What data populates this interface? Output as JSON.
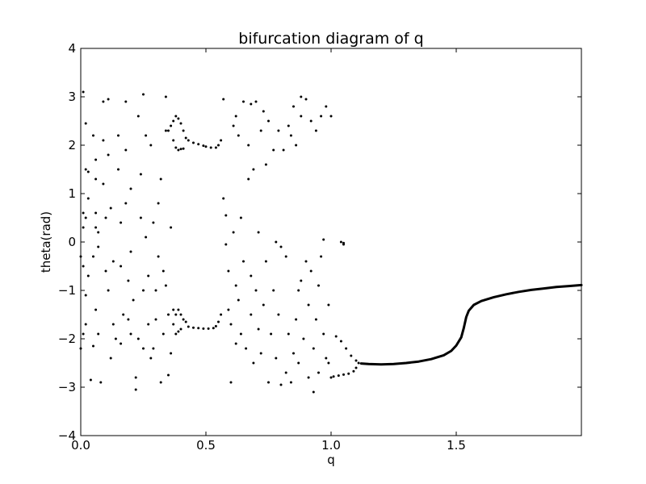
{
  "chart_data": {
    "type": "scatter",
    "title": "bifurcation diagram of q",
    "xlabel": "q",
    "ylabel": "theta(rad)",
    "xlim": [
      0.0,
      2.0
    ],
    "ylim": [
      -4,
      4
    ],
    "xticks": [
      0.0,
      0.5,
      1.0,
      1.5
    ],
    "xtick_labels": [
      "0.0",
      "0.5",
      "1.0",
      "1.5"
    ],
    "yticks": [
      -4,
      -3,
      -2,
      -1,
      0,
      1,
      2,
      3,
      4
    ],
    "ytick_labels": [
      "−4",
      "−3",
      "−2",
      "−1",
      "0",
      "1",
      "2",
      "3",
      "4"
    ],
    "grid": false,
    "marker_color": "#000000",
    "scatter_points": [
      [
        0.01,
        3.1
      ],
      [
        0.02,
        2.45
      ],
      [
        0.02,
        1.5
      ],
      [
        0.03,
        1.45
      ],
      [
        0.03,
        0.9
      ],
      [
        0.01,
        0.6
      ],
      [
        0.02,
        0.5
      ],
      [
        0.01,
        0.3
      ],
      [
        0.0,
        -0.3
      ],
      [
        0.01,
        -0.5
      ],
      [
        0.03,
        -0.7
      ],
      [
        0.02,
        -1.1
      ],
      [
        0.02,
        -1.7
      ],
      [
        0.01,
        -1.9
      ],
      [
        0.0,
        -2.2
      ],
      [
        0.04,
        -2.85
      ],
      [
        0.05,
        -2.15
      ],
      [
        0.05,
        2.2
      ],
      [
        0.06,
        1.7
      ],
      [
        0.06,
        1.3
      ],
      [
        0.06,
        0.6
      ],
      [
        0.06,
        0.3
      ],
      [
        0.07,
        0.2
      ],
      [
        0.07,
        -0.1
      ],
      [
        0.05,
        -0.3
      ],
      [
        0.06,
        -1.4
      ],
      [
        0.07,
        -1.9
      ],
      [
        0.08,
        -2.9
      ],
      [
        0.09,
        2.1
      ],
      [
        0.09,
        1.2
      ],
      [
        0.1,
        0.5
      ],
      [
        0.1,
        -0.6
      ],
      [
        0.11,
        -1.0
      ],
      [
        0.12,
        -2.4
      ],
      [
        0.09,
        2.9
      ],
      [
        0.11,
        2.95
      ],
      [
        0.11,
        1.8
      ],
      [
        0.12,
        0.7
      ],
      [
        0.13,
        -0.4
      ],
      [
        0.13,
        -1.7
      ],
      [
        0.14,
        -2.0
      ],
      [
        0.15,
        2.2
      ],
      [
        0.15,
        1.5
      ],
      [
        0.16,
        0.4
      ],
      [
        0.16,
        -0.5
      ],
      [
        0.17,
        -1.5
      ],
      [
        0.16,
        -2.1
      ],
      [
        0.18,
        2.9
      ],
      [
        0.18,
        1.9
      ],
      [
        0.18,
        0.8
      ],
      [
        0.19,
        -0.8
      ],
      [
        0.19,
        -1.6
      ],
      [
        0.2,
        1.1
      ],
      [
        0.2,
        -0.2
      ],
      [
        0.21,
        -1.2
      ],
      [
        0.2,
        -1.9
      ],
      [
        0.22,
        -2.8
      ],
      [
        0.22,
        -3.05
      ],
      [
        0.23,
        -2.0
      ],
      [
        0.23,
        2.6
      ],
      [
        0.24,
        1.4
      ],
      [
        0.24,
        0.5
      ],
      [
        0.25,
        -1.0
      ],
      [
        0.25,
        -2.2
      ],
      [
        0.25,
        3.05
      ],
      [
        0.26,
        2.2
      ],
      [
        0.26,
        0.1
      ],
      [
        0.27,
        -0.7
      ],
      [
        0.27,
        -1.7
      ],
      [
        0.28,
        -2.4
      ],
      [
        0.28,
        2.0
      ],
      [
        0.29,
        0.4
      ],
      [
        0.29,
        -2.2
      ],
      [
        0.3,
        -1.0
      ],
      [
        0.3,
        -1.6
      ],
      [
        0.31,
        0.8
      ],
      [
        0.31,
        -0.3
      ],
      [
        0.32,
        -2.9
      ],
      [
        0.32,
        1.3
      ],
      [
        0.33,
        -0.6
      ],
      [
        0.33,
        -1.9
      ],
      [
        0.34,
        3.0
      ],
      [
        0.34,
        2.3
      ],
      [
        0.34,
        -0.9
      ],
      [
        0.35,
        -2.75
      ],
      [
        0.35,
        -1.5
      ],
      [
        0.36,
        -2.3
      ],
      [
        0.37,
        -1.4
      ],
      [
        0.38,
        -1.9
      ],
      [
        0.36,
        0.3
      ],
      [
        0.35,
        2.3
      ],
      [
        0.36,
        2.4
      ],
      [
        0.37,
        2.5
      ],
      [
        0.38,
        2.6
      ],
      [
        0.39,
        2.55
      ],
      [
        0.4,
        2.45
      ],
      [
        0.41,
        2.3
      ],
      [
        0.42,
        2.15
      ],
      [
        0.37,
        2.1
      ],
      [
        0.38,
        1.95
      ],
      [
        0.39,
        1.9
      ],
      [
        0.4,
        1.92
      ],
      [
        0.41,
        1.93
      ],
      [
        0.43,
        2.1
      ],
      [
        0.45,
        2.05
      ],
      [
        0.47,
        2.02
      ],
      [
        0.49,
        1.99
      ],
      [
        0.5,
        1.97
      ],
      [
        0.52,
        1.95
      ],
      [
        0.54,
        1.95
      ],
      [
        0.55,
        2.0
      ],
      [
        0.56,
        2.1
      ],
      [
        0.38,
        -1.5
      ],
      [
        0.39,
        -1.4
      ],
      [
        0.4,
        -1.5
      ],
      [
        0.41,
        -1.6
      ],
      [
        0.42,
        -1.65
      ],
      [
        0.37,
        -1.7
      ],
      [
        0.39,
        -1.85
      ],
      [
        0.4,
        -1.8
      ],
      [
        0.43,
        -1.75
      ],
      [
        0.45,
        -1.77
      ],
      [
        0.47,
        -1.78
      ],
      [
        0.49,
        -1.79
      ],
      [
        0.51,
        -1.79
      ],
      [
        0.53,
        -1.78
      ],
      [
        0.54,
        -1.74
      ],
      [
        0.55,
        -1.65
      ],
      [
        0.56,
        -1.5
      ],
      [
        0.57,
        2.95
      ],
      [
        0.57,
        0.9
      ],
      [
        0.58,
        0.55
      ],
      [
        0.58,
        -0.05
      ],
      [
        0.59,
        -0.6
      ],
      [
        0.59,
        -1.4
      ],
      [
        0.6,
        -1.7
      ],
      [
        0.6,
        -2.9
      ],
      [
        0.61,
        2.4
      ],
      [
        0.61,
        0.2
      ],
      [
        0.62,
        -0.9
      ],
      [
        0.62,
        -2.1
      ],
      [
        0.63,
        2.2
      ],
      [
        0.63,
        -1.2
      ],
      [
        0.64,
        0.5
      ],
      [
        0.64,
        -1.9
      ],
      [
        0.65,
        2.9
      ],
      [
        0.65,
        -0.4
      ],
      [
        0.66,
        -2.2
      ],
      [
        0.67,
        2.0
      ],
      [
        0.67,
        1.3
      ],
      [
        0.68,
        -0.7
      ],
      [
        0.68,
        -1.5
      ],
      [
        0.69,
        1.5
      ],
      [
        0.69,
        -2.5
      ],
      [
        0.7,
        2.9
      ],
      [
        0.7,
        -1.0
      ],
      [
        0.71,
        0.2
      ],
      [
        0.71,
        -1.8
      ],
      [
        0.72,
        2.3
      ],
      [
        0.72,
        -2.3
      ],
      [
        0.73,
        -1.3
      ],
      [
        0.74,
        1.6
      ],
      [
        0.74,
        -0.4
      ],
      [
        0.75,
        2.5
      ],
      [
        0.75,
        -2.9
      ],
      [
        0.76,
        -1.9
      ],
      [
        0.77,
        1.9
      ],
      [
        0.77,
        -1.0
      ],
      [
        0.78,
        0.0
      ],
      [
        0.78,
        -2.4
      ],
      [
        0.79,
        2.3
      ],
      [
        0.79,
        -1.5
      ],
      [
        0.8,
        -0.1
      ],
      [
        0.8,
        -2.95
      ],
      [
        0.81,
        1.9
      ],
      [
        0.82,
        -0.3
      ],
      [
        0.82,
        -2.7
      ],
      [
        0.83,
        2.4
      ],
      [
        0.83,
        -1.9
      ],
      [
        0.84,
        2.2
      ],
      [
        0.84,
        -2.9
      ],
      [
        0.85,
        -2.3
      ],
      [
        0.86,
        2.0
      ],
      [
        0.86,
        -1.6
      ],
      [
        0.87,
        -1.0
      ],
      [
        0.87,
        -2.5
      ],
      [
        0.88,
        2.6
      ],
      [
        0.88,
        -0.8
      ],
      [
        0.89,
        -2.0
      ],
      [
        0.9,
        2.95
      ],
      [
        0.9,
        -0.4
      ],
      [
        0.91,
        -1.3
      ],
      [
        0.91,
        -2.8
      ],
      [
        0.92,
        2.5
      ],
      [
        0.92,
        -0.6
      ],
      [
        0.93,
        -2.2
      ],
      [
        0.94,
        2.3
      ],
      [
        0.94,
        -1.6
      ],
      [
        0.95,
        -0.9
      ],
      [
        0.95,
        -2.7
      ],
      [
        0.96,
        2.6
      ],
      [
        0.96,
        -0.3
      ],
      [
        0.97,
        -1.9
      ],
      [
        0.98,
        2.8
      ],
      [
        0.98,
        -2.4
      ],
      [
        0.99,
        -1.3
      ],
      [
        0.99,
        -2.5
      ],
      [
        1.0,
        2.6
      ],
      [
        1.0,
        -2.8
      ],
      [
        0.73,
        2.7
      ],
      [
        0.68,
        2.85
      ],
      [
        0.62,
        2.6
      ],
      [
        0.85,
        2.8
      ],
      [
        0.88,
        3.0
      ],
      [
        0.93,
        -3.1
      ],
      [
        0.97,
        0.05
      ],
      [
        1.01,
        -2.78
      ],
      [
        1.03,
        -2.76
      ],
      [
        1.05,
        -2.74
      ],
      [
        1.07,
        -2.72
      ],
      [
        1.09,
        -2.67
      ],
      [
        1.1,
        -2.6
      ],
      [
        1.11,
        -2.5
      ],
      [
        1.02,
        -1.95
      ],
      [
        1.04,
        -2.05
      ],
      [
        1.06,
        -2.2
      ],
      [
        1.08,
        -2.35
      ],
      [
        1.1,
        -2.45
      ],
      [
        1.05,
        -0.02
      ],
      [
        1.04,
        0.0
      ],
      [
        1.05,
        -0.05
      ]
    ],
    "curve_points": [
      [
        1.12,
        -2.51
      ],
      [
        1.15,
        -2.52
      ],
      [
        1.2,
        -2.53
      ],
      [
        1.25,
        -2.52
      ],
      [
        1.3,
        -2.5
      ],
      [
        1.35,
        -2.47
      ],
      [
        1.4,
        -2.42
      ],
      [
        1.45,
        -2.34
      ],
      [
        1.48,
        -2.25
      ],
      [
        1.5,
        -2.14
      ],
      [
        1.52,
        -1.97
      ],
      [
        1.53,
        -1.78
      ],
      [
        1.54,
        -1.55
      ],
      [
        1.55,
        -1.42
      ],
      [
        1.57,
        -1.3
      ],
      [
        1.6,
        -1.22
      ],
      [
        1.65,
        -1.14
      ],
      [
        1.7,
        -1.08
      ],
      [
        1.75,
        -1.03
      ],
      [
        1.8,
        -0.99
      ],
      [
        1.85,
        -0.96
      ],
      [
        1.9,
        -0.93
      ],
      [
        1.95,
        -0.91
      ],
      [
        2.0,
        -0.89
      ]
    ]
  }
}
